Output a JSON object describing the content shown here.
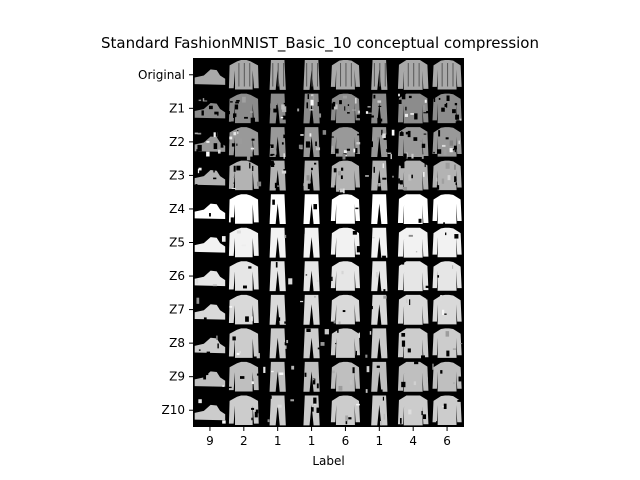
{
  "chart_data": {
    "type": "image-grid",
    "title": "Standard FashionMNIST_Basic_10 conceptual compression",
    "xlabel": "Label",
    "ylabel": "",
    "x_tick_labels": [
      "9",
      "2",
      "1",
      "1",
      "6",
      "1",
      "4",
      "6"
    ],
    "y_tick_labels": [
      "Original",
      "Z1",
      "Z2",
      "Z3",
      "Z4",
      "Z5",
      "Z6",
      "Z7",
      "Z8",
      "Z9",
      "Z10"
    ],
    "columns": [
      {
        "label": "9",
        "item": "sneaker"
      },
      {
        "label": "2",
        "item": "pullover"
      },
      {
        "label": "1",
        "item": "trouser"
      },
      {
        "label": "1",
        "item": "trouser"
      },
      {
        "label": "6",
        "item": "shirt"
      },
      {
        "label": "1",
        "item": "trouser"
      },
      {
        "label": "4",
        "item": "coat"
      },
      {
        "label": "6",
        "item": "shirt"
      }
    ],
    "rows": [
      {
        "label": "Original",
        "brightness": 0.85,
        "noise": 0.0
      },
      {
        "label": "Z1",
        "brightness": 0.55,
        "noise": 0.95
      },
      {
        "label": "Z2",
        "brightness": 0.6,
        "noise": 0.85
      },
      {
        "label": "Z3",
        "brightness": 0.7,
        "noise": 0.65
      },
      {
        "label": "Z4",
        "brightness": 1.0,
        "noise": 0.1
      },
      {
        "label": "Z5",
        "brightness": 0.95,
        "noise": 0.12
      },
      {
        "label": "Z6",
        "brightness": 0.9,
        "noise": 0.15
      },
      {
        "label": "Z7",
        "brightness": 0.85,
        "noise": 0.2
      },
      {
        "label": "Z8",
        "brightness": 0.8,
        "noise": 0.25
      },
      {
        "label": "Z9",
        "brightness": 0.75,
        "noise": 0.3
      },
      {
        "label": "Z10",
        "brightness": 0.8,
        "noise": 0.28
      }
    ],
    "colors": {
      "background": "#000000",
      "foreground": "#ffffff"
    },
    "grid": false,
    "legend": "none"
  }
}
